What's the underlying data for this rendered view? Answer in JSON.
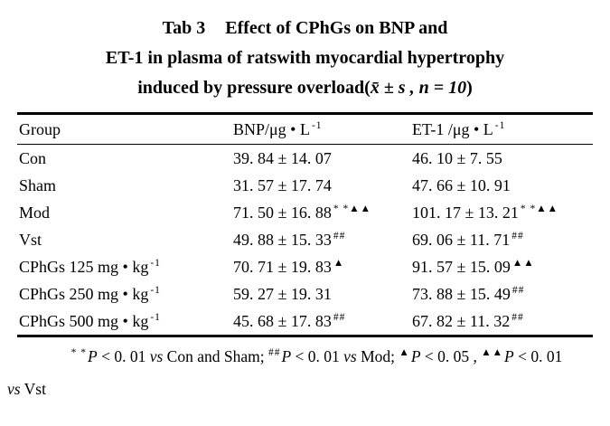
{
  "figure": {
    "title": {
      "line1_tab": "Tab 3",
      "line1_text": "Effect of CPhGs on BNP and",
      "line2": "ET-1 in plasma of ratswith myocardial hypertrophy",
      "line3_prefix": "induced by pressure overload(",
      "line3_math": "x̄ ± s , n = 10",
      "line3_close": ")"
    },
    "table": {
      "header": {
        "group": "Group",
        "bnp_main": "BNP/μg • L",
        "bnp_sup": "-1",
        "et_main": "ET-1 /μg • L",
        "et_sup": "-1"
      },
      "rows": [
        {
          "group": "Con",
          "group_sup": "",
          "bnp": "39. 84 ± 14. 07",
          "bnp_sup": "",
          "et": "46. 10 ± 7. 55",
          "et_sup": ""
        },
        {
          "group": "Sham",
          "group_sup": "",
          "bnp": "31. 57 ± 17. 74",
          "bnp_sup": "",
          "et": "47. 66 ± 10. 91",
          "et_sup": ""
        },
        {
          "group": "Mod",
          "group_sup": "",
          "bnp": "71. 50 ± 16. 88",
          "bnp_sup": "* *▲▲",
          "et": "101. 17 ± 13. 21",
          "et_sup": "* *▲▲"
        },
        {
          "group": "Vst",
          "group_sup": "",
          "bnp": "49. 88 ± 15. 33",
          "bnp_sup": "##",
          "et": "69. 06 ± 11. 71",
          "et_sup": "##"
        },
        {
          "group": "CPhGs 125 mg • kg",
          "group_sup": "-1",
          "bnp": "70. 71 ± 19. 83",
          "bnp_sup": "▲",
          "et": "91. 57 ± 15. 09",
          "et_sup": "▲▲"
        },
        {
          "group": "CPhGs 250 mg • kg",
          "group_sup": "-1",
          "bnp": "59. 27 ± 19. 31",
          "bnp_sup": "",
          "et": "73. 88 ± 15. 49",
          "et_sup": "##"
        },
        {
          "group": "CPhGs 500 mg • kg",
          "group_sup": "-1",
          "bnp": "45. 68 ± 17. 83",
          "bnp_sup": "##",
          "et": "67. 82 ± 11. 32",
          "et_sup": "##"
        }
      ]
    },
    "footnote": {
      "tokens": [
        {
          "t": "sup",
          "v": "* *"
        },
        {
          "t": "i",
          "v": "P"
        },
        {
          "t": "n",
          "v": " < 0. 01 "
        },
        {
          "t": "i",
          "v": "vs"
        },
        {
          "t": "n",
          "v": " Con and Sham; "
        },
        {
          "t": "sup",
          "v": "##"
        },
        {
          "t": "i",
          "v": "P"
        },
        {
          "t": "n",
          "v": " < 0. 01 "
        },
        {
          "t": "i",
          "v": "vs"
        },
        {
          "t": "n",
          "v": " Mod; "
        },
        {
          "t": "sup",
          "v": "▲"
        },
        {
          "t": "i",
          "v": "P"
        },
        {
          "t": "n",
          "v": " < 0. 05 , "
        },
        {
          "t": "sup",
          "v": "▲▲"
        },
        {
          "t": "i",
          "v": "P"
        },
        {
          "t": "n",
          "v": " < 0. 01"
        }
      ],
      "line2": [
        {
          "t": "i",
          "v": "vs"
        },
        {
          "t": "n",
          "v": " Vst"
        }
      ]
    }
  }
}
